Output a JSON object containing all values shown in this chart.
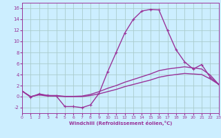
{
  "xlabel": "Windchill (Refroidissement éolien,°C)",
  "background_color": "#cceeff",
  "grid_color": "#aacccc",
  "line_color": "#993399",
  "hours": [
    0,
    1,
    2,
    3,
    4,
    5,
    6,
    7,
    8,
    9,
    10,
    11,
    12,
    13,
    14,
    15,
    16,
    17,
    18,
    19,
    20,
    21,
    22,
    23
  ],
  "curve1": [
    1.0,
    -0.1,
    0.5,
    0.2,
    0.1,
    -1.8,
    -1.8,
    -2.0,
    -1.5,
    0.6,
    4.5,
    8.0,
    11.5,
    14.0,
    15.5,
    15.8,
    15.7,
    12.0,
    8.5,
    6.3,
    5.0,
    5.8,
    3.5,
    2.2
  ],
  "curve2": [
    1.0,
    0.0,
    0.3,
    0.1,
    0.1,
    0.0,
    0.0,
    0.0,
    0.2,
    0.5,
    0.9,
    1.3,
    1.8,
    2.2,
    2.6,
    3.0,
    3.5,
    3.8,
    4.0,
    4.2,
    4.1,
    4.0,
    3.2,
    2.2
  ],
  "curve3": [
    1.0,
    0.0,
    0.4,
    0.2,
    0.2,
    0.05,
    0.05,
    0.1,
    0.4,
    0.9,
    1.5,
    2.0,
    2.6,
    3.1,
    3.6,
    4.1,
    4.7,
    5.0,
    5.2,
    5.4,
    5.2,
    5.0,
    3.9,
    2.2
  ],
  "ylim": [
    -3,
    17
  ],
  "xlim": [
    0,
    23
  ],
  "yticks": [
    -2,
    0,
    2,
    4,
    6,
    8,
    10,
    12,
    14,
    16
  ],
  "xticks": [
    0,
    1,
    2,
    3,
    4,
    5,
    6,
    7,
    8,
    9,
    10,
    11,
    12,
    13,
    14,
    15,
    16,
    17,
    18,
    19,
    20,
    21,
    22,
    23
  ]
}
